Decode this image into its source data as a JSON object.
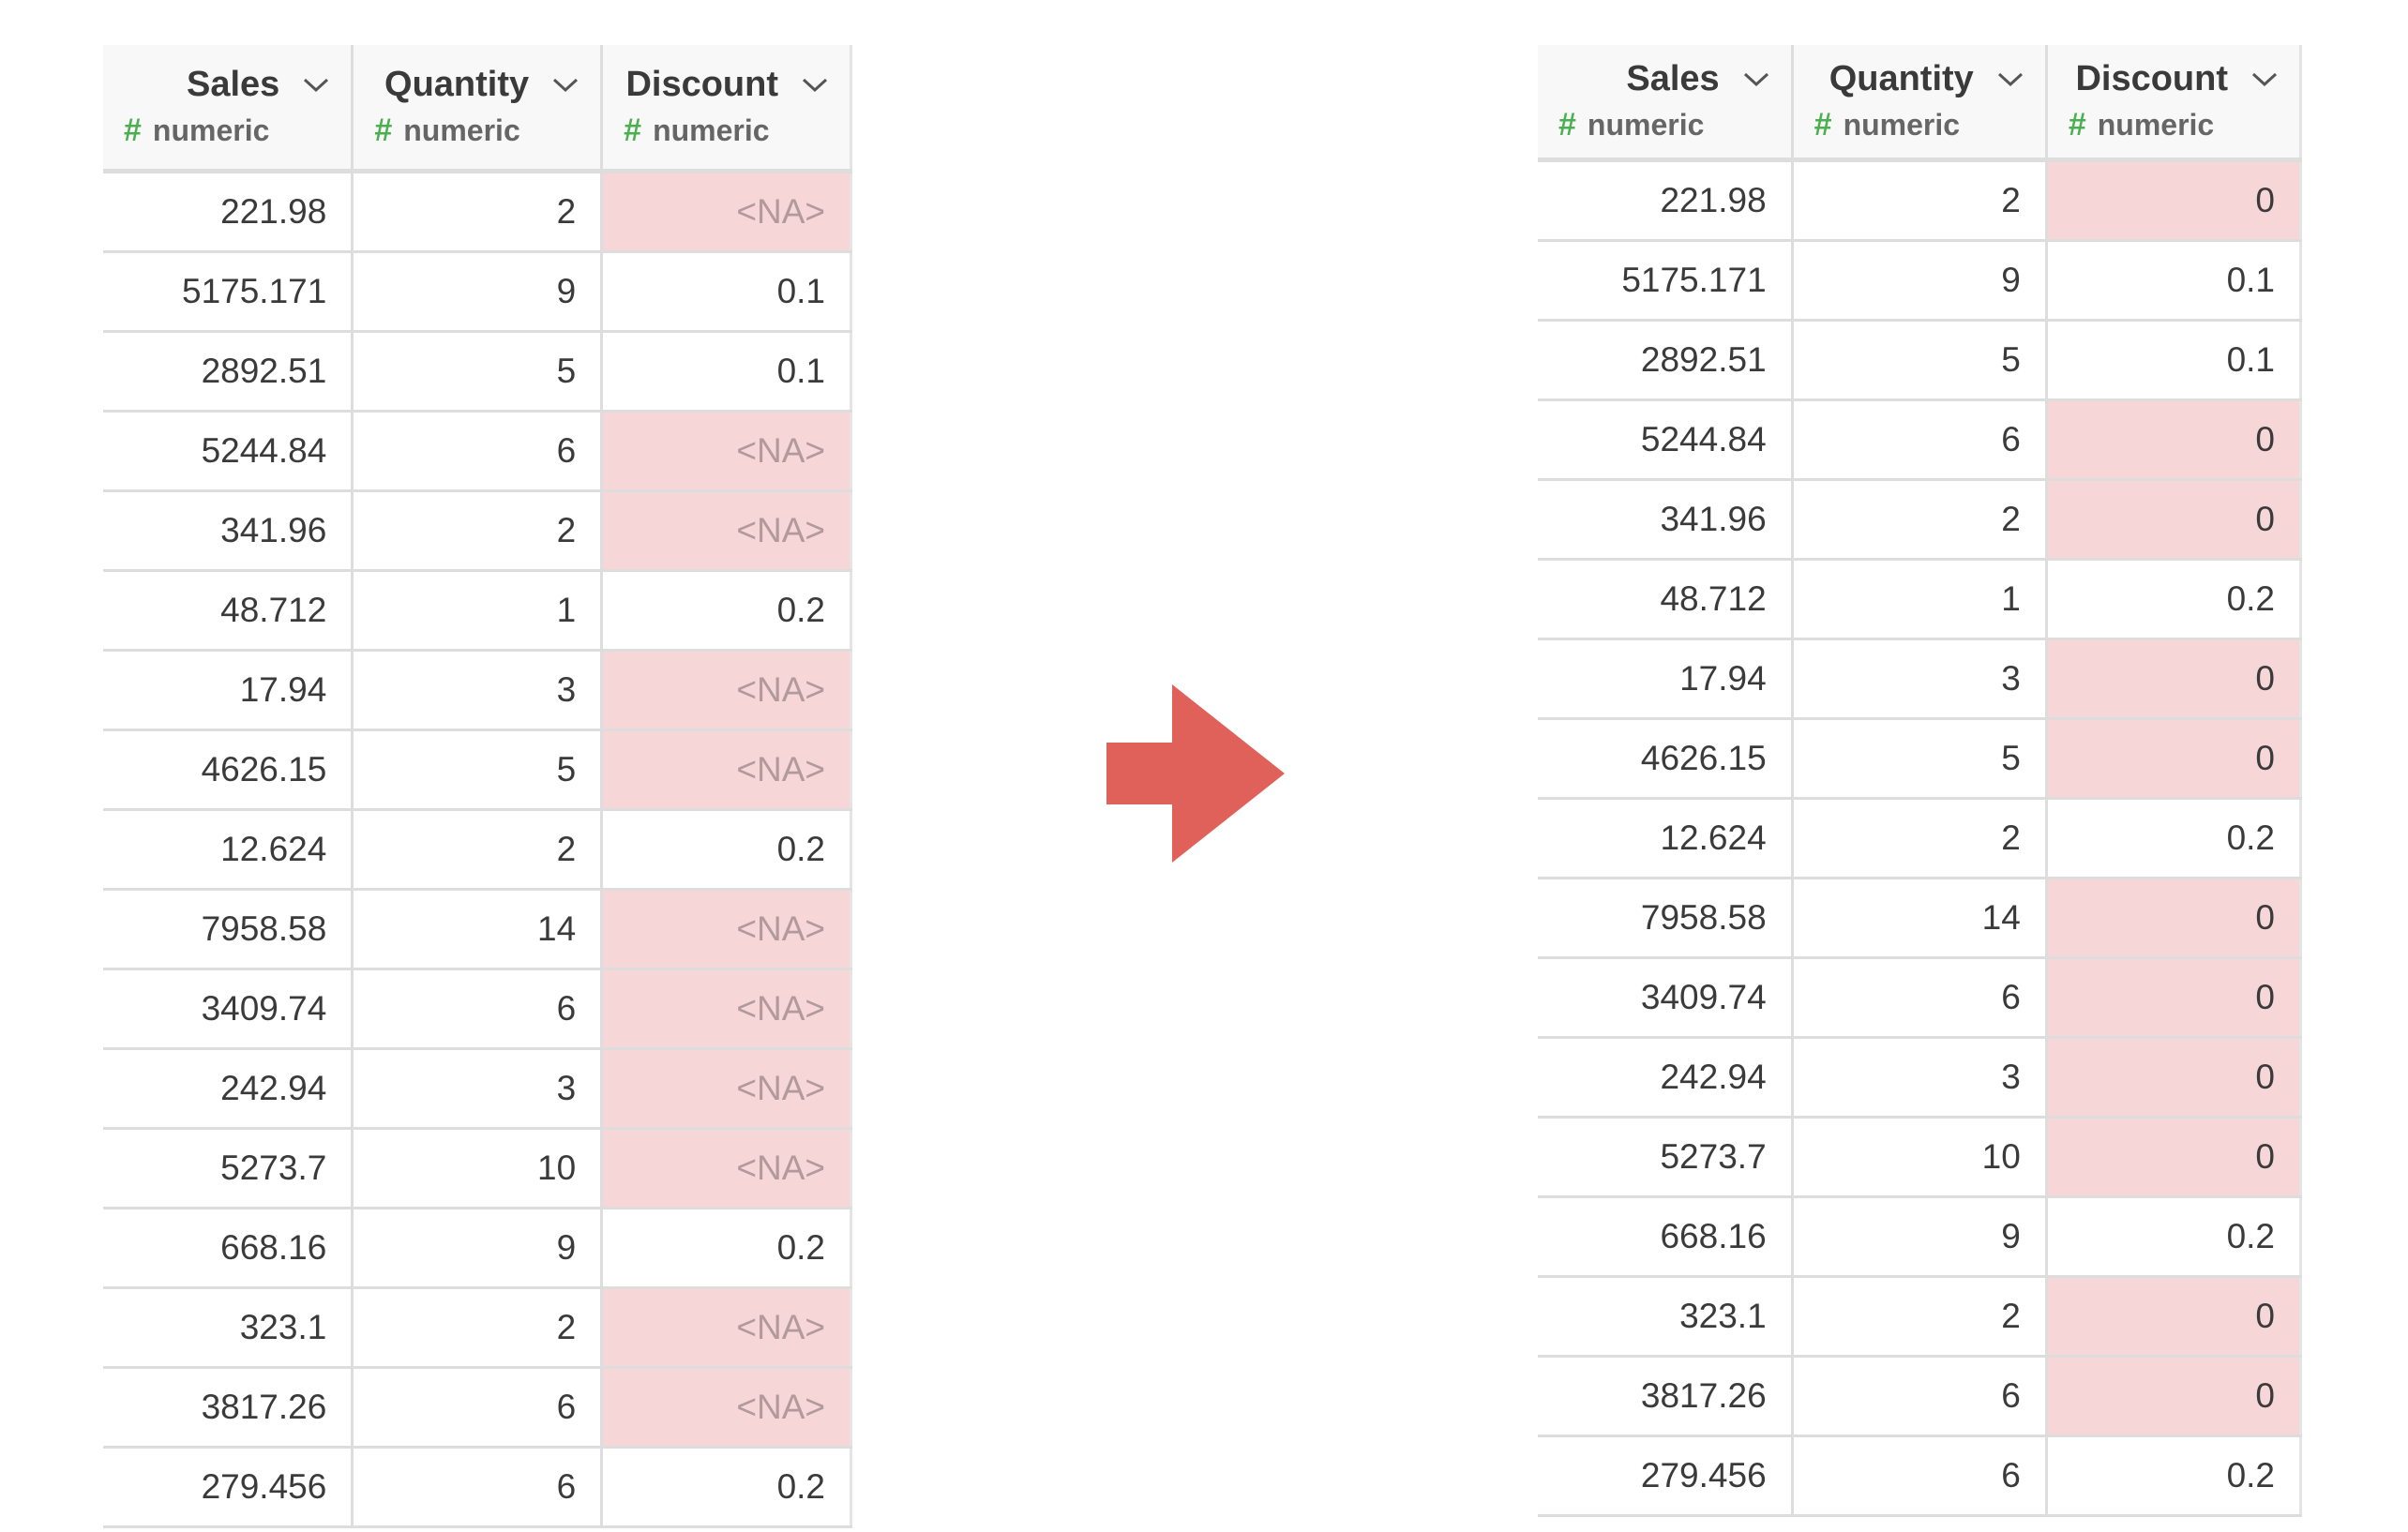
{
  "colors": {
    "highlight": "#f6d6d6",
    "type_hash": "#4caf50",
    "arrow": "#e0615a"
  },
  "icons": {
    "column_menu": "chevron-down-icon",
    "transform_arrow": "arrow-right-icon"
  },
  "before": {
    "columns": [
      {
        "name": "Sales",
        "type_symbol": "#",
        "type": "numeric"
      },
      {
        "name": "Quantity",
        "type_symbol": "#",
        "type": "numeric"
      },
      {
        "name": "Discount",
        "type_symbol": "#",
        "type": "numeric"
      }
    ],
    "rows": [
      {
        "sales": "221.98",
        "quantity": "2",
        "discount": "<NA>",
        "highlight": true
      },
      {
        "sales": "5175.171",
        "quantity": "9",
        "discount": "0.1",
        "highlight": false
      },
      {
        "sales": "2892.51",
        "quantity": "5",
        "discount": "0.1",
        "highlight": false
      },
      {
        "sales": "5244.84",
        "quantity": "6",
        "discount": "<NA>",
        "highlight": true
      },
      {
        "sales": "341.96",
        "quantity": "2",
        "discount": "<NA>",
        "highlight": true
      },
      {
        "sales": "48.712",
        "quantity": "1",
        "discount": "0.2",
        "highlight": false
      },
      {
        "sales": "17.94",
        "quantity": "3",
        "discount": "<NA>",
        "highlight": true
      },
      {
        "sales": "4626.15",
        "quantity": "5",
        "discount": "<NA>",
        "highlight": true
      },
      {
        "sales": "12.624",
        "quantity": "2",
        "discount": "0.2",
        "highlight": false
      },
      {
        "sales": "7958.58",
        "quantity": "14",
        "discount": "<NA>",
        "highlight": true
      },
      {
        "sales": "3409.74",
        "quantity": "6",
        "discount": "<NA>",
        "highlight": true
      },
      {
        "sales": "242.94",
        "quantity": "3",
        "discount": "<NA>",
        "highlight": true
      },
      {
        "sales": "5273.7",
        "quantity": "10",
        "discount": "<NA>",
        "highlight": true
      },
      {
        "sales": "668.16",
        "quantity": "9",
        "discount": "0.2",
        "highlight": false
      },
      {
        "sales": "323.1",
        "quantity": "2",
        "discount": "<NA>",
        "highlight": true
      },
      {
        "sales": "3817.26",
        "quantity": "6",
        "discount": "<NA>",
        "highlight": true
      },
      {
        "sales": "279.456",
        "quantity": "6",
        "discount": "0.2",
        "highlight": false
      }
    ]
  },
  "after": {
    "columns": [
      {
        "name": "Sales",
        "type_symbol": "#",
        "type": "numeric"
      },
      {
        "name": "Quantity",
        "type_symbol": "#",
        "type": "numeric"
      },
      {
        "name": "Discount",
        "type_symbol": "#",
        "type": "numeric"
      }
    ],
    "rows": [
      {
        "sales": "221.98",
        "quantity": "2",
        "discount": "0",
        "highlight": true
      },
      {
        "sales": "5175.171",
        "quantity": "9",
        "discount": "0.1",
        "highlight": false
      },
      {
        "sales": "2892.51",
        "quantity": "5",
        "discount": "0.1",
        "highlight": false
      },
      {
        "sales": "5244.84",
        "quantity": "6",
        "discount": "0",
        "highlight": true
      },
      {
        "sales": "341.96",
        "quantity": "2",
        "discount": "0",
        "highlight": true
      },
      {
        "sales": "48.712",
        "quantity": "1",
        "discount": "0.2",
        "highlight": false
      },
      {
        "sales": "17.94",
        "quantity": "3",
        "discount": "0",
        "highlight": true
      },
      {
        "sales": "4626.15",
        "quantity": "5",
        "discount": "0",
        "highlight": true
      },
      {
        "sales": "12.624",
        "quantity": "2",
        "discount": "0.2",
        "highlight": false
      },
      {
        "sales": "7958.58",
        "quantity": "14",
        "discount": "0",
        "highlight": true
      },
      {
        "sales": "3409.74",
        "quantity": "6",
        "discount": "0",
        "highlight": true
      },
      {
        "sales": "242.94",
        "quantity": "3",
        "discount": "0",
        "highlight": true
      },
      {
        "sales": "5273.7",
        "quantity": "10",
        "discount": "0",
        "highlight": true
      },
      {
        "sales": "668.16",
        "quantity": "9",
        "discount": "0.2",
        "highlight": false
      },
      {
        "sales": "323.1",
        "quantity": "2",
        "discount": "0",
        "highlight": true
      },
      {
        "sales": "3817.26",
        "quantity": "6",
        "discount": "0",
        "highlight": true
      },
      {
        "sales": "279.456",
        "quantity": "6",
        "discount": "0.2",
        "highlight": false
      }
    ]
  }
}
